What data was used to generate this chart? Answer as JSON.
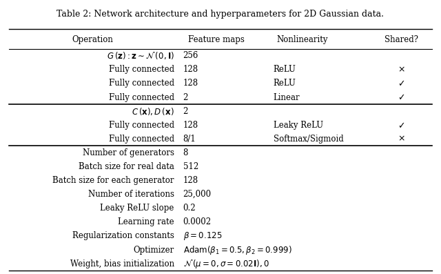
{
  "title": "Table 2: Network architecture and hyperparameters for 2D Gaussian data.",
  "col_headers": [
    "Operation",
    "Feature maps",
    "Nonlinearity",
    "Shared?"
  ],
  "rows": [
    [
      "$G\\,(\\mathbf{z}): \\mathbf{z} \\sim \\mathcal{N}\\,(0, \\mathbf{I})$",
      "256",
      "",
      ""
    ],
    [
      "Fully connected",
      "128",
      "ReLU",
      "$\\times$"
    ],
    [
      "Fully connected",
      "128",
      "ReLU",
      "$\\checkmark$"
    ],
    [
      "Fully connected",
      "2",
      "Linear",
      "$\\checkmark$"
    ],
    [
      "$C\\,(\\mathbf{x}), D\\,(\\mathbf{x})$",
      "2",
      "",
      ""
    ],
    [
      "Fully connected",
      "128",
      "Leaky ReLU",
      "$\\checkmark$"
    ],
    [
      "Fully connected",
      "8/1",
      "Softmax/Sigmoid",
      "$\\times$"
    ],
    [
      "Number of generators",
      "8",
      "",
      ""
    ],
    [
      "Batch size for real data",
      "512",
      "",
      ""
    ],
    [
      "Batch size for each generator",
      "128",
      "",
      ""
    ],
    [
      "Number of iterations",
      "25,000",
      "",
      ""
    ],
    [
      "Leaky ReLU slope",
      "0.2",
      "",
      ""
    ],
    [
      "Learning rate",
      "0.0002",
      "",
      ""
    ],
    [
      "Regularization constants",
      "$\\beta = 0.125$",
      "",
      ""
    ],
    [
      "Optimizer",
      "$\\mathrm{Adam}(\\beta_1 = 0.5, \\beta_2 = 0.999)$",
      "",
      ""
    ],
    [
      "Weight, bias initialization",
      "$\\mathcal{N}\\,(\\mu = 0, \\sigma = 0.02\\mathbf{I}), 0$",
      "",
      ""
    ]
  ],
  "section_separators": [
    4,
    7
  ],
  "bg_color": "#ffffff",
  "fontsize": 8.5,
  "title_fontsize": 9.0
}
